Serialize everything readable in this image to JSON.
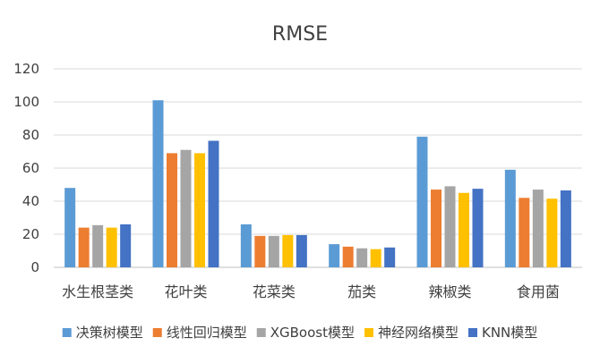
{
  "chart_data": {
    "type": "bar",
    "title": "RMSE",
    "xlabel": "",
    "ylabel": "",
    "ylim": [
      0,
      120
    ],
    "yticks": [
      0,
      20,
      40,
      60,
      80,
      100,
      120
    ],
    "grid": true,
    "legend_position": "bottom",
    "categories": [
      "水生根茎类",
      "花叶类",
      "花菜类",
      "茄类",
      "辣椒类",
      "食用菌"
    ],
    "series": [
      {
        "name": "决策树模型",
        "color": "#5b9bd5",
        "values": [
          48,
          101,
          26,
          14,
          79,
          59
        ]
      },
      {
        "name": "线性回归模型",
        "color": "#ed7d31",
        "values": [
          24,
          69,
          19,
          12.5,
          47,
          42
        ]
      },
      {
        "name": "XGBoost模型",
        "color": "#a5a5a5",
        "values": [
          25.5,
          71,
          19,
          11.5,
          49,
          47
        ]
      },
      {
        "name": "神经网络模型",
        "color": "#ffc000",
        "values": [
          24,
          69,
          19.5,
          11,
          45,
          41.5
        ]
      },
      {
        "name": "KNN模型",
        "color": "#4472c4",
        "values": [
          26,
          76.5,
          19.5,
          12,
          47.5,
          46.5
        ]
      }
    ]
  }
}
